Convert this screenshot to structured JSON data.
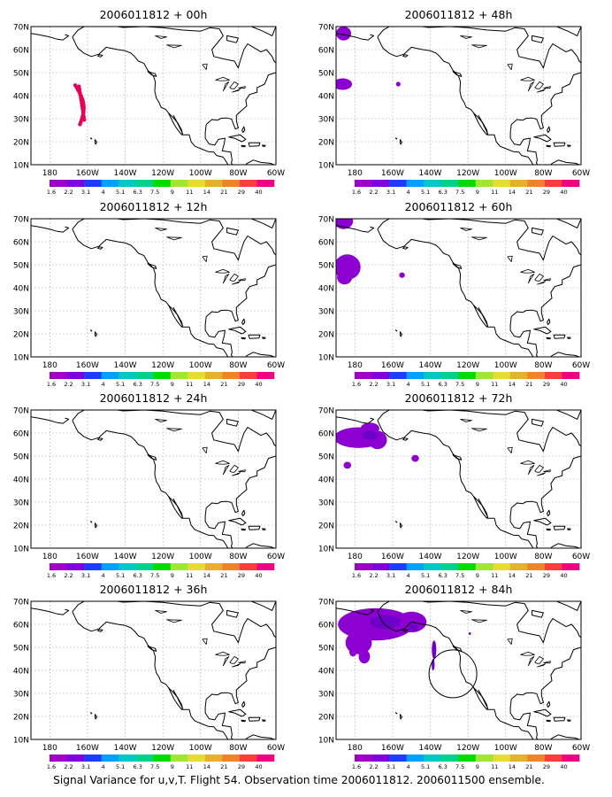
{
  "caption": "Signal Variance for u,v,T. Flight 54. Observation time 2006011812. 2006011500 ensemble.",
  "map": {
    "lat_labels": [
      "70N",
      "60N",
      "50N",
      "40N",
      "30N",
      "20N",
      "10N"
    ],
    "lon_labels": [
      "180",
      "160W",
      "140W",
      "120W",
      "100W",
      "80W",
      "60W"
    ],
    "lon_range": [
      -190,
      -60
    ],
    "lat_range": [
      10,
      70
    ]
  },
  "colorbar": {
    "labels": [
      "1.6",
      "2.2",
      "3.1",
      "4",
      "5.1",
      "6.3",
      "7.5",
      "9",
      "11",
      "14",
      "21",
      "29",
      "40"
    ],
    "colors": [
      "#a000c8",
      "#8200dc",
      "#1e3cff",
      "#00a0ff",
      "#00c8c8",
      "#00d28c",
      "#00dc00",
      "#a0e632",
      "#e6dc32",
      "#e6af2d",
      "#f08228",
      "#fa3c3c",
      "#f00082"
    ]
  },
  "panels": [
    {
      "title": "2006011812 + 00h"
    },
    {
      "title": "2006011812 + 12h"
    },
    {
      "title": "2006011812 + 24h"
    },
    {
      "title": "2006011812 + 36h"
    },
    {
      "title": "2006011812 + 48h"
    },
    {
      "title": "2006011812 + 60h"
    },
    {
      "title": "2006011812 + 72h"
    },
    {
      "title": "2006011812 + 84h"
    }
  ]
}
